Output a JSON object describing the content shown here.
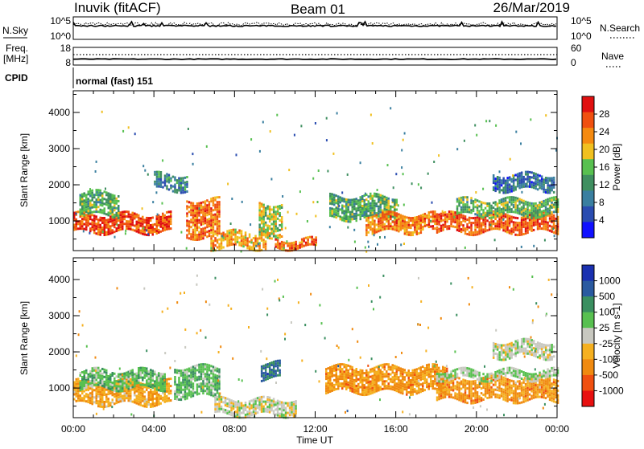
{
  "header": {
    "station": "Inuvik (fitACF)",
    "beam": "Beam 01",
    "date": "26/Mar/2019"
  },
  "top_panels": {
    "nsky_label": "N.Sky",
    "nsky_ticks": [
      "10^5",
      "10^0"
    ],
    "nsearch_label": "N.Search",
    "nsearch_ticks": [
      "10^5",
      "10^0"
    ],
    "freq_label_1": "Freq.",
    "freq_label_2": "[MHz]",
    "freq_ticks": [
      "18",
      "8"
    ],
    "nave_label": "Nave",
    "nave_ticks": [
      "60",
      "0"
    ],
    "cpid_label": "CPID",
    "cpid_value": "normal (fast) 151"
  },
  "colors": {
    "power_scale": [
      "#1010ff",
      "#2a4cb0",
      "#3a7fa0",
      "#3f8f60",
      "#58c050",
      "#f0c020",
      "#f58a10",
      "#f05010",
      "#e01010"
    ],
    "velocity_scale": [
      "#e81010",
      "#f05010",
      "#f08a10",
      "#f5b020",
      "#c8c8c0",
      "#58c050",
      "#3a8f60",
      "#2a5aa0",
      "#1a30b0"
    ]
  },
  "chart_data": [
    {
      "type": "heatmap",
      "title": "",
      "ylabel": "Slant Range [km]",
      "xlabel": "",
      "x_ticks": [
        "00:00",
        "04:00",
        "08:00",
        "12:00",
        "16:00",
        "20:00",
        "00:00"
      ],
      "y_ticks": [
        "1000",
        "2000",
        "3000",
        "4000"
      ],
      "ylim": [
        180,
        4600
      ],
      "colorbar": {
        "label": "Power [dB]",
        "ticks": [
          "28",
          "24",
          "20",
          "16",
          "12",
          "8",
          "4"
        ],
        "range": [
          0,
          32
        ]
      },
      "regions": [
        {
          "t": [
            0.0,
            4.8
          ],
          "range": [
            700,
            1200
          ],
          "value": 27
        },
        {
          "t": [
            0.3,
            2.2
          ],
          "range": [
            1200,
            1800
          ],
          "value": 14
        },
        {
          "t": [
            4.0,
            5.6
          ],
          "range": [
            1900,
            2300
          ],
          "value": 10
        },
        {
          "t": [
            5.6,
            7.2
          ],
          "range": [
            600,
            1600
          ],
          "value": 25
        },
        {
          "t": [
            6.8,
            9.5
          ],
          "range": [
            250,
            700
          ],
          "value": 22
        },
        {
          "t": [
            9.2,
            10.3
          ],
          "range": [
            600,
            1500
          ],
          "value": 18
        },
        {
          "t": [
            10.0,
            12.0
          ],
          "range": [
            250,
            500
          ],
          "value": 25
        },
        {
          "t": [
            12.7,
            16.0
          ],
          "range": [
            1100,
            1700
          ],
          "value": 14
        },
        {
          "t": [
            14.5,
            18.0
          ],
          "range": [
            700,
            1200
          ],
          "value": 24
        },
        {
          "t": [
            18.0,
            24.0
          ],
          "range": [
            700,
            1200
          ],
          "value": 26
        },
        {
          "t": [
            19.0,
            24.0
          ],
          "range": [
            1200,
            1600
          ],
          "value": 15
        },
        {
          "t": [
            20.8,
            23.8
          ],
          "range": [
            1900,
            2300
          ],
          "value": 8
        }
      ]
    },
    {
      "type": "heatmap",
      "title": "",
      "ylabel": "Slant Range [km]",
      "xlabel": "Time UT",
      "x_ticks": [
        "00:00",
        "04:00",
        "08:00",
        "12:00",
        "16:00",
        "20:00",
        "00:00"
      ],
      "y_ticks": [
        "1000",
        "2000",
        "3000",
        "4000"
      ],
      "ylim": [
        180,
        4600
      ],
      "colorbar": {
        "label": "Velocity [m s-1]",
        "ticks": [
          "1000",
          "500",
          "100",
          "25",
          "-25",
          "-100",
          "-500",
          "-1000"
        ],
        "range": [
          -1200,
          1200
        ]
      },
      "regions": [
        {
          "t": [
            0.0,
            4.8
          ],
          "range": [
            600,
            1200
          ],
          "value": -350
        },
        {
          "t": [
            0.3,
            4.5
          ],
          "range": [
            1000,
            1500
          ],
          "value": 300
        },
        {
          "t": [
            5.0,
            7.2
          ],
          "range": [
            800,
            1600
          ],
          "value": 300
        },
        {
          "t": [
            7.0,
            11.0
          ],
          "range": [
            250,
            700
          ],
          "value": 0
        },
        {
          "t": [
            9.3,
            10.2
          ],
          "range": [
            1300,
            1700
          ],
          "value": 700
        },
        {
          "t": [
            12.5,
            18.5
          ],
          "range": [
            900,
            1600
          ],
          "value": -450
        },
        {
          "t": [
            18.0,
            24.0
          ],
          "range": [
            700,
            1300
          ],
          "value": -450
        },
        {
          "t": [
            18.0,
            24.0
          ],
          "range": [
            1300,
            1500
          ],
          "value": 150
        },
        {
          "t": [
            20.8,
            23.8
          ],
          "range": [
            1900,
            2300
          ],
          "value": 0
        }
      ]
    }
  ]
}
